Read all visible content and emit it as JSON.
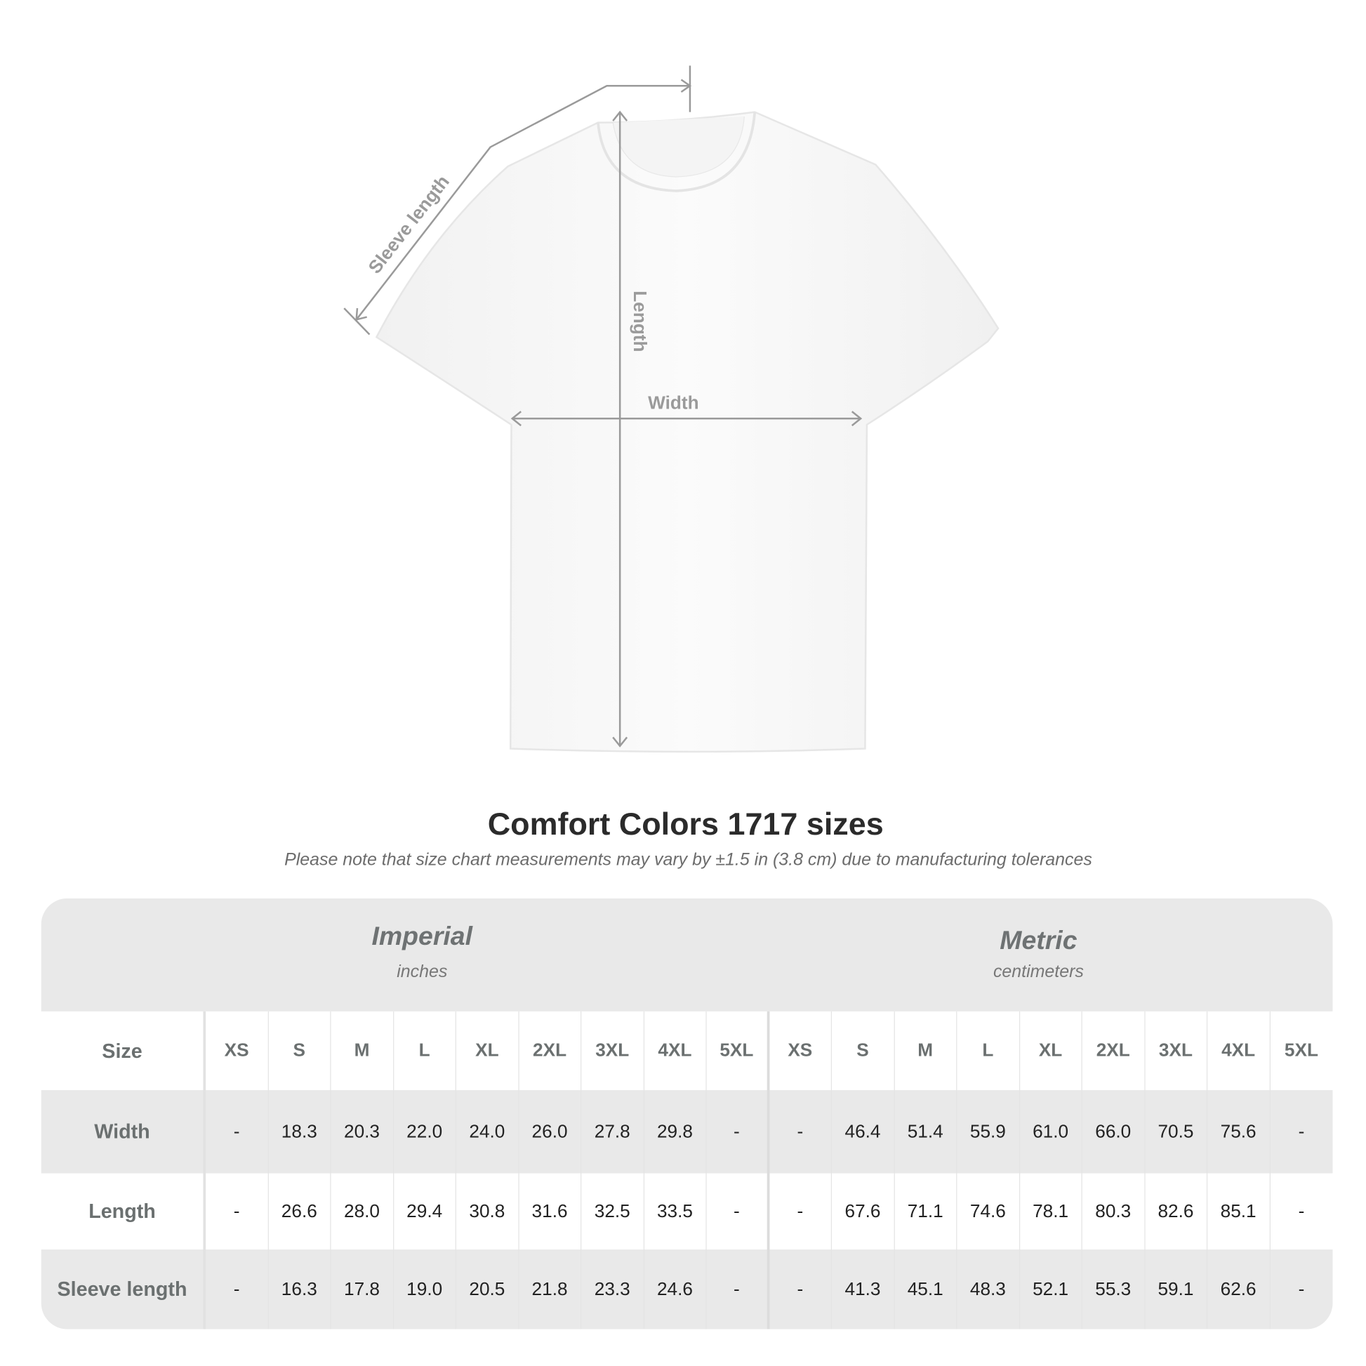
{
  "diagram": {
    "labels": {
      "sleeve": "Sleeve length",
      "length": "Length",
      "width": "Width"
    },
    "colors": {
      "shirt": "#ffffff",
      "dimension_lines": "#9a9a9a"
    }
  },
  "title": "Comfort Colors 1717 sizes",
  "note": "Please note that size chart measurements may vary by ±1.5 in (3.8 cm) due to manufacturing tolerances",
  "table": {
    "imperial": {
      "name": "Imperial",
      "unit": "inches"
    },
    "metric": {
      "name": "Metric",
      "unit": "centimeters"
    },
    "size_label": "Size",
    "sizes": [
      "XS",
      "S",
      "M",
      "L",
      "XL",
      "2XL",
      "3XL",
      "4XL",
      "5XL"
    ],
    "rows": [
      {
        "label": "Width",
        "imperial": [
          "-",
          "18.3",
          "20.3",
          "22.0",
          "24.0",
          "26.0",
          "27.8",
          "29.8",
          "-"
        ],
        "metric": [
          "-",
          "46.4",
          "51.4",
          "55.9",
          "61.0",
          "66.0",
          "70.5",
          "75.6",
          "-"
        ]
      },
      {
        "label": "Length",
        "imperial": [
          "-",
          "26.6",
          "28.0",
          "29.4",
          "30.8",
          "31.6",
          "32.5",
          "33.5",
          "-"
        ],
        "metric": [
          "-",
          "67.6",
          "71.1",
          "74.6",
          "78.1",
          "80.3",
          "82.6",
          "85.1",
          "-"
        ]
      },
      {
        "label": "Sleeve length",
        "imperial": [
          "-",
          "16.3",
          "17.8",
          "19.0",
          "20.5",
          "21.8",
          "23.3",
          "24.6",
          "-"
        ],
        "metric": [
          "-",
          "41.3",
          "45.1",
          "48.3",
          "52.1",
          "55.3",
          "59.1",
          "62.6",
          "-"
        ]
      }
    ],
    "colors": {
      "band": "#e9e9e9",
      "label_text": "#6b7070",
      "value_text": "#222222"
    }
  }
}
